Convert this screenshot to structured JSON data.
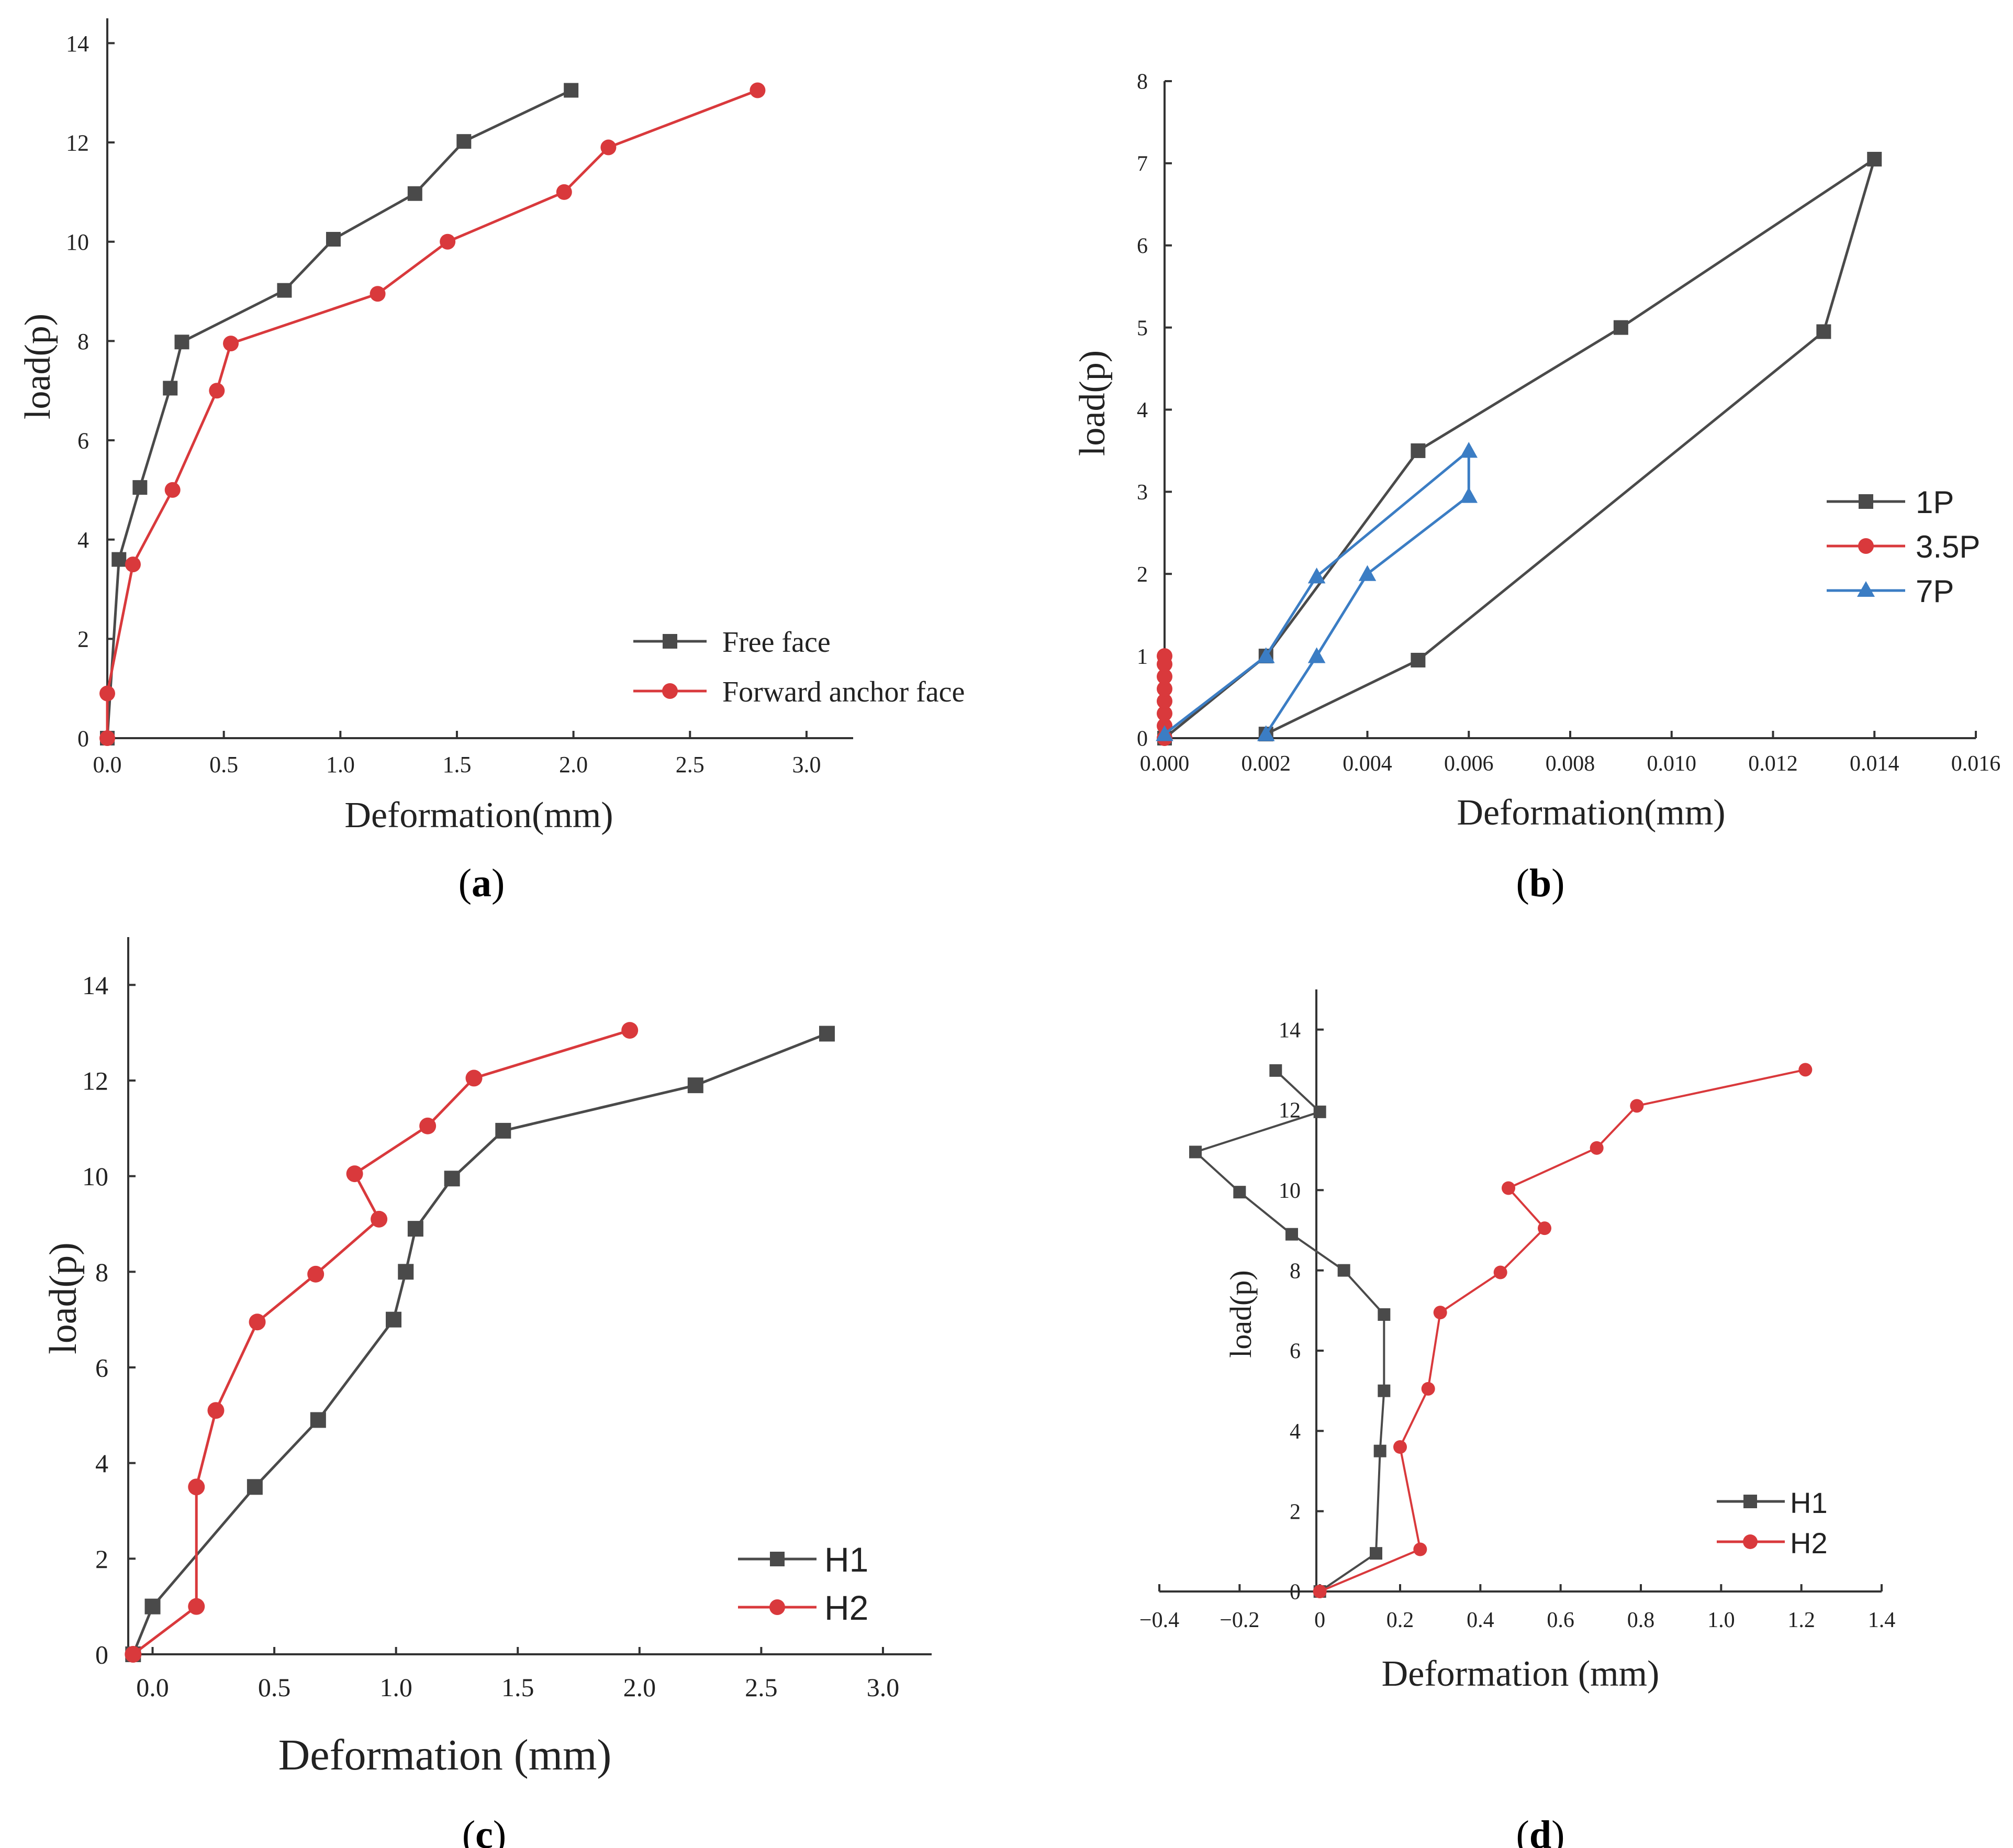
{
  "chart_data": [
    {
      "id": "a",
      "caption": "a",
      "type": "line",
      "xlabel": "Deformation(mm)",
      "ylabel": "load(p)",
      "xlim": [
        0.0,
        3.2
      ],
      "ylim": [
        0,
        14.5
      ],
      "x_ticks": [
        "0.0",
        "0.5",
        "1.0",
        "1.5",
        "2.0",
        "2.5",
        "3.0"
      ],
      "x_tick_values": [
        0.0,
        0.5,
        1.0,
        1.5,
        2.0,
        2.5,
        3.0
      ],
      "y_ticks": [
        "0",
        "2",
        "4",
        "6",
        "8",
        "10",
        "12",
        "14"
      ],
      "y_tick_values": [
        0,
        2,
        4,
        6,
        8,
        10,
        12,
        14
      ],
      "legend_position": "bottom-right",
      "series": [
        {
          "name": "Free face",
          "color": "#4a4a4a",
          "marker": "square",
          "x": [
            0.0,
            0.05,
            0.14,
            0.27,
            0.32,
            0.76,
            0.97,
            1.32,
            1.53,
            1.99
          ],
          "y": [
            0.0,
            3.6,
            5.05,
            7.05,
            7.98,
            9.02,
            10.05,
            10.97,
            12.02,
            13.05
          ]
        },
        {
          "name": "Forward anchor face",
          "color": "#d9393c",
          "marker": "circle",
          "x": [
            0.0,
            0.0,
            0.11,
            0.28,
            0.47,
            0.53,
            1.16,
            1.46,
            1.96,
            2.15,
            2.79
          ],
          "y": [
            0.0,
            0.9,
            3.5,
            5.0,
            7.0,
            7.95,
            8.95,
            10.0,
            11.0,
            11.9,
            13.05
          ]
        }
      ]
    },
    {
      "id": "b",
      "caption": "b",
      "type": "line",
      "xlabel": "Deformation(mm)",
      "ylabel": "load(p)",
      "xlim": [
        0.0,
        0.016
      ],
      "ylim": [
        0,
        8
      ],
      "x_ticks": [
        "0.000",
        "0.002",
        "0.004",
        "0.006",
        "0.008",
        "0.010",
        "0.012",
        "0.014",
        "0.016"
      ],
      "x_tick_values": [
        0.0,
        0.002,
        0.004,
        0.006,
        0.008,
        0.01,
        0.012,
        0.014,
        0.016
      ],
      "y_ticks": [
        "0",
        "1",
        "2",
        "3",
        "4",
        "5",
        "6",
        "7",
        "8"
      ],
      "y_tick_values": [
        0,
        1,
        2,
        3,
        4,
        5,
        6,
        7,
        8
      ],
      "legend_position": "right",
      "series": [
        {
          "name": "1P",
          "color": "#4a4a4a",
          "marker": "square",
          "x": [
            0.0,
            0.002,
            0.005,
            0.009,
            0.014,
            0.013,
            0.005,
            0.002
          ],
          "y": [
            0.0,
            1.0,
            3.5,
            5.0,
            7.05,
            4.95,
            0.95,
            0.05
          ]
        },
        {
          "name": "3.5P",
          "color": "#d9393c",
          "marker": "circle",
          "x": [
            0.0,
            0.0,
            0.0,
            0.0,
            0.0,
            0.0,
            0.0,
            0.0
          ],
          "y": [
            0.0,
            0.15,
            0.3,
            0.45,
            0.6,
            0.75,
            0.9,
            1.0
          ]
        },
        {
          "name": "7P",
          "color": "#3b7dc4",
          "marker": "triangle",
          "x": [
            0.0,
            0.002,
            0.003,
            0.006,
            0.006,
            0.004,
            0.003,
            0.002
          ],
          "y": [
            0.05,
            1.0,
            1.97,
            3.5,
            2.95,
            2.0,
            1.0,
            0.05
          ]
        }
      ]
    },
    {
      "id": "c",
      "caption": "c",
      "type": "line",
      "xlabel": "Deformation (mm)",
      "ylabel": "load(p)",
      "xlim": [
        -0.1,
        3.2
      ],
      "ylim": [
        0,
        15
      ],
      "x_ticks": [
        "0.0",
        "0.5",
        "1.0",
        "1.5",
        "2.0",
        "2.5",
        "3.0"
      ],
      "x_tick_values": [
        0.0,
        0.5,
        1.0,
        1.5,
        2.0,
        2.5,
        3.0
      ],
      "y_ticks": [
        "0",
        "2",
        "4",
        "6",
        "8",
        "10",
        "12",
        "14"
      ],
      "y_tick_values": [
        0,
        2,
        4,
        6,
        8,
        10,
        12,
        14
      ],
      "legend_position": "bottom-right",
      "series": [
        {
          "name": "H1",
          "color": "#4a4a4a",
          "marker": "square",
          "x": [
            -0.08,
            0.0,
            0.42,
            0.68,
            0.99,
            1.04,
            1.08,
            1.23,
            1.44,
            2.23,
            2.77
          ],
          "y": [
            0.0,
            1.0,
            3.5,
            4.9,
            7.0,
            8.0,
            8.9,
            9.95,
            10.95,
            11.9,
            12.98
          ]
        },
        {
          "name": "H2",
          "color": "#d9393c",
          "marker": "circle",
          "x": [
            -0.08,
            0.18,
            0.18,
            0.26,
            0.43,
            0.67,
            0.93,
            0.83,
            1.13,
            1.32,
            1.96
          ],
          "y": [
            0.0,
            1.0,
            3.5,
            5.1,
            6.95,
            7.95,
            9.1,
            10.05,
            11.05,
            12.05,
            13.05
          ]
        }
      ]
    },
    {
      "id": "d",
      "caption": "d",
      "type": "line",
      "xlabel": "Deformation (mm)",
      "ylabel": "load(p)",
      "xlim": [
        -0.4,
        1.4
      ],
      "ylim": [
        0,
        15
      ],
      "x_ticks": [
        "−0.4",
        "−0.2",
        "0",
        "0.2",
        "0.4",
        "0.6",
        "0.8",
        "1.0",
        "1.2",
        "1.4"
      ],
      "x_tick_values": [
        -0.4,
        -0.2,
        0.0,
        0.2,
        0.4,
        0.6,
        0.8,
        1.0,
        1.2,
        1.4
      ],
      "y_ticks": [
        "0",
        "2",
        "4",
        "6",
        "8",
        "10",
        "12",
        "14"
      ],
      "y_tick_values": [
        0,
        2,
        4,
        6,
        8,
        10,
        12,
        14
      ],
      "legend_position": "bottom-right",
      "series": [
        {
          "name": "H1",
          "color": "#4a4a4a",
          "marker": "square",
          "x": [
            0.0,
            0.14,
            0.15,
            0.16,
            0.16,
            0.06,
            -0.07,
            -0.2,
            -0.31,
            0.0,
            -0.11
          ],
          "y": [
            0.0,
            0.95,
            3.5,
            5.0,
            6.9,
            8.0,
            8.9,
            9.95,
            10.95,
            11.95,
            12.98
          ]
        },
        {
          "name": "H2",
          "color": "#d9393c",
          "marker": "circle",
          "x": [
            0.0,
            0.25,
            0.2,
            0.27,
            0.3,
            0.45,
            0.56,
            0.47,
            0.69,
            0.79,
            1.21
          ],
          "y": [
            0.0,
            1.05,
            3.6,
            5.05,
            6.95,
            7.95,
            9.05,
            10.05,
            11.05,
            12.1,
            13.0
          ]
        }
      ]
    }
  ]
}
